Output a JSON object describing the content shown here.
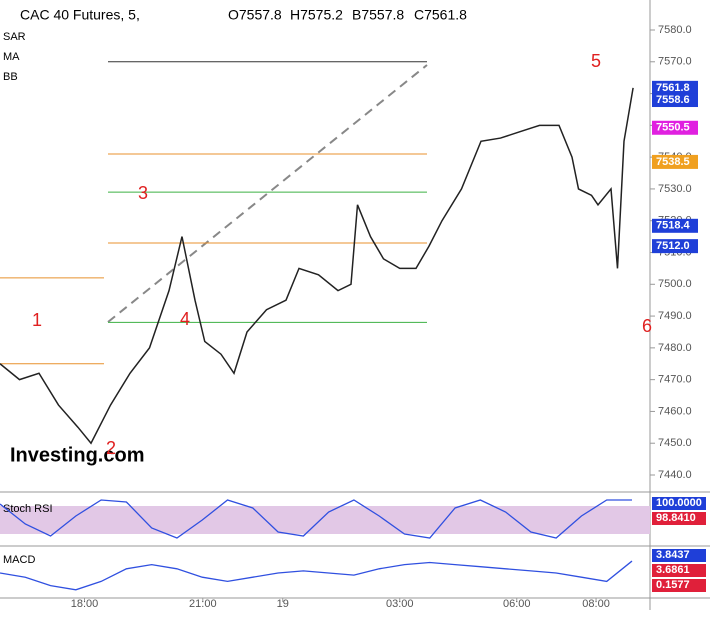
{
  "header": {
    "symbol": "CAC 40 Futures, 5,",
    "ohlc": [
      "O7557.8",
      "H7575.2",
      "B7557.8",
      "C7561.8"
    ]
  },
  "indicators": [
    "SAR",
    "MA",
    "BB"
  ],
  "logo": "Investing.com",
  "chart_data": {
    "type": "line",
    "color": "#222",
    "x": [
      0,
      3,
      6,
      9,
      12,
      14,
      17,
      20,
      23,
      26,
      28,
      30,
      31.5,
      34,
      36,
      38,
      41,
      44,
      46,
      49,
      52,
      54,
      55,
      57,
      59,
      61.5,
      64,
      66,
      68,
      71,
      74,
      77,
      80,
      83,
      86,
      88,
      89,
      91,
      92,
      94,
      95,
      96,
      97.4
    ],
    "values": [
      7475,
      7470,
      7472,
      7462,
      7455,
      7450,
      7462,
      7472,
      7480,
      7498,
      7515,
      7495,
      7482,
      7478,
      7472,
      7485,
      7492,
      7495,
      7505,
      7503,
      7498,
      7500,
      7525,
      7515,
      7508,
      7505,
      7505,
      7512,
      7520,
      7530,
      7545,
      7546,
      7548,
      7550,
      7550,
      7540,
      7530,
      7528,
      7525,
      7530,
      7505,
      7545,
      7561.8
    ],
    "xlim": [
      0,
      100
    ],
    "ylim": [
      7440,
      7580
    ],
    "yticks": [
      {
        "value": 7440,
        "label": "7440.0"
      },
      {
        "value": 7450,
        "label": "7450.0"
      },
      {
        "value": 7460,
        "label": "7460.0"
      },
      {
        "value": 7470,
        "label": "7470.0"
      },
      {
        "value": 7480,
        "label": "7480.0"
      },
      {
        "value": 7490,
        "label": "7490.0"
      },
      {
        "value": 7500,
        "label": "7500.0"
      },
      {
        "value": 7510,
        "label": "7510.0"
      },
      {
        "value": 7520,
        "label": "7520.0"
      },
      {
        "value": 7530,
        "label": "7530.0"
      },
      {
        "value": 7540,
        "label": "7540.0"
      },
      {
        "value": 7550,
        "label": "7550.0"
      },
      {
        "value": 7560,
        "label": "7560.0"
      },
      {
        "value": 7570,
        "label": "7570.0"
      },
      {
        "value": 7580,
        "label": "7580.0"
      }
    ],
    "xticks": [
      {
        "value": 13,
        "label": "18:00"
      },
      {
        "value": 31.2,
        "label": "21:00"
      },
      {
        "value": 43.5,
        "label": "19"
      },
      {
        "value": 61.5,
        "label": "03:00"
      },
      {
        "value": 79.5,
        "label": "06:00"
      },
      {
        "value": 91.7,
        "label": "08:00"
      }
    ],
    "levels": [
      {
        "value": 7570,
        "color": "#333333"
      },
      {
        "value": 7541,
        "color": "#e8912d"
      },
      {
        "value": 7529,
        "color": "#3cb043"
      },
      {
        "value": 7513,
        "color": "#e8912d"
      },
      {
        "value": 7488,
        "color": "#3cb043"
      },
      {
        "value": 7502,
        "color": "#e8912d"
      },
      {
        "value": 7475,
        "color": "#e8912d"
      }
    ],
    "price_tags": [
      {
        "value": 7561.8,
        "label": "7561.8",
        "color": "#1f3fd8"
      },
      {
        "value": 7558.6,
        "label": "7558.6",
        "color": "#1f3fd8"
      },
      {
        "value": 7550.5,
        "label": "7550.5",
        "color": "#e020e0"
      },
      {
        "value": 7538.5,
        "label": "7538.5",
        "color": "#f0a020"
      },
      {
        "value": 7518.4,
        "label": "7518.4",
        "color": "#1f3fd8"
      },
      {
        "value": 7512,
        "label": "7512.0",
        "color": "#1f3fd8"
      }
    ],
    "annotations": [
      "1",
      "2",
      "3",
      "4",
      "5",
      "6"
    ]
  },
  "stoch_rsi": {
    "label": "Stoch RSI",
    "ylim": [
      0,
      100
    ],
    "values": [
      90,
      40,
      10,
      60,
      100,
      95,
      30,
      5,
      50,
      100,
      80,
      20,
      10,
      70,
      100,
      60,
      15,
      5,
      80,
      100,
      70,
      20,
      5,
      60,
      100,
      100
    ],
    "tags": [
      {
        "value": 100,
        "label": "100.0000",
        "color": "#1f3fd8"
      },
      {
        "value": 98.841,
        "label": "98.8410",
        "color": "#e0203a"
      }
    ]
  },
  "macd": {
    "label": "MACD",
    "ylim": [
      -4,
      6
    ],
    "values": [
      1,
      0,
      -2,
      -3,
      -1,
      2,
      3,
      2,
      0,
      -1,
      0,
      1,
      1.5,
      1,
      0.5,
      2,
      3,
      3.5,
      3,
      2.5,
      2,
      1.5,
      1,
      0,
      -1,
      3.8437
    ],
    "tags": [
      {
        "value": 3.8437,
        "label": "3.8437",
        "color": "#1f3fd8"
      },
      {
        "value": 3.6861,
        "label": "3.6861",
        "color": "#e0203a"
      },
      {
        "value": 0.1577,
        "label": "0.1577",
        "color": "#e0203a"
      }
    ]
  }
}
